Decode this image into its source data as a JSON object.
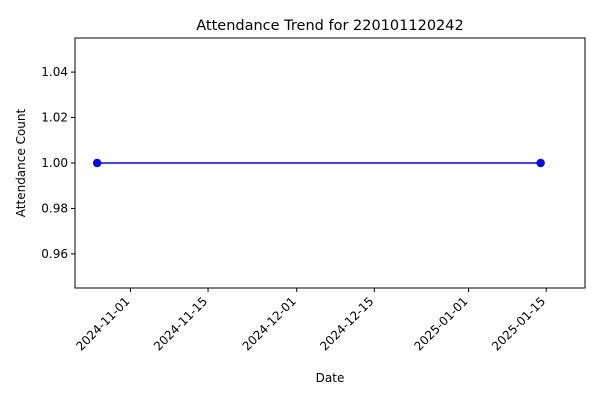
{
  "chart_data": {
    "type": "line",
    "title": "Attendance Trend for 220101120242",
    "xlabel": "Date",
    "ylabel": "Attendance Count",
    "x_type": "date",
    "xlim": [
      "2024-10-22",
      "2025-01-22"
    ],
    "ylim": [
      0.945,
      1.055
    ],
    "x_ticks": [
      "2024-11-01",
      "2024-11-15",
      "2024-12-01",
      "2024-12-15",
      "2025-01-01",
      "2025-01-15"
    ],
    "y_ticks": [
      "0.96",
      "0.98",
      "1.00",
      "1.02",
      "1.04"
    ],
    "grid": false,
    "series": [
      {
        "color": "#0000ff",
        "marker": "circle",
        "points": [
          {
            "x": "2024-10-26",
            "y": 1.0
          },
          {
            "x": "2025-01-14",
            "y": 1.0
          }
        ]
      }
    ]
  }
}
